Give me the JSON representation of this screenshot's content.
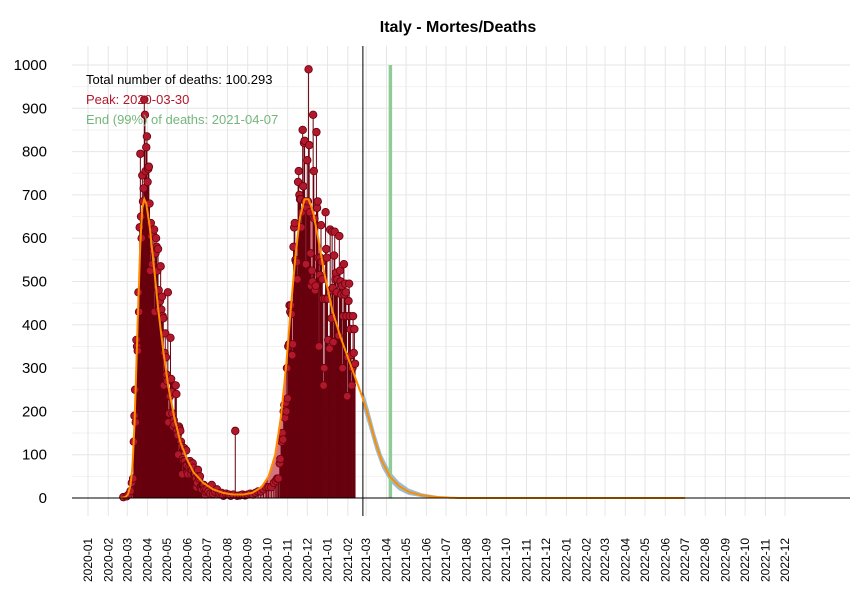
{
  "chart_data": {
    "type": "line",
    "title": "Italy - Mortes/Deaths",
    "xlabel": "",
    "ylabel": "",
    "ylim": [
      0,
      1000
    ],
    "xlim": [
      "2019-12-23",
      "2023-01-10"
    ],
    "yticks": [
      0,
      100,
      200,
      300,
      400,
      500,
      600,
      700,
      800,
      900,
      1000
    ],
    "xticks": [
      "2020-01",
      "2020-02",
      "2020-03",
      "2020-04",
      "2020-05",
      "2020-06",
      "2020-07",
      "2020-08",
      "2020-09",
      "2020-10",
      "2020-11",
      "2020-12",
      "2021-01",
      "2021-02",
      "2021-03",
      "2021-04",
      "2021-05",
      "2021-06",
      "2021-07",
      "2021-08",
      "2021-09",
      "2021-10",
      "2021-11",
      "2021-12",
      "2022-01",
      "2022-02",
      "2022-03",
      "2022-04",
      "2022-05",
      "2022-06",
      "2022-07",
      "2022-08",
      "2022-09",
      "2022-10",
      "2022-11",
      "2022-12"
    ],
    "grid": true,
    "annotations": {
      "total": "Total number of deaths: 100.293",
      "peak": "Peak: 2020-03-30",
      "end": "End (99%) of deaths: 2021-04-07"
    },
    "today_line": "2021-02-24",
    "end_line": "2021-04-07",
    "shaded_waves": [
      {
        "start": "2020-03-23",
        "end": "2020-09-30"
      },
      {
        "start": "2020-10-01",
        "end": "2020-12-20"
      }
    ],
    "daily_deaths": [
      [
        "2020-02-24",
        2
      ],
      [
        "2020-02-29",
        4
      ],
      [
        "2020-03-03",
        8
      ],
      [
        "2020-03-06",
        16
      ],
      [
        "2020-03-08",
        35
      ],
      [
        "2020-03-10",
        45
      ],
      [
        "2020-03-11",
        130
      ],
      [
        "2020-03-12",
        190
      ],
      [
        "2020-03-13",
        250
      ],
      [
        "2020-03-14",
        175
      ],
      [
        "2020-03-15",
        365
      ],
      [
        "2020-03-16",
        350
      ],
      [
        "2020-03-17",
        340
      ],
      [
        "2020-03-18",
        475
      ],
      [
        "2020-03-19",
        430
      ],
      [
        "2020-03-20",
        625
      ],
      [
        "2020-03-21",
        795
      ],
      [
        "2020-03-22",
        650
      ],
      [
        "2020-03-23",
        600
      ],
      [
        "2020-03-24",
        745
      ],
      [
        "2020-03-25",
        685
      ],
      [
        "2020-03-26",
        715
      ],
      [
        "2020-03-27",
        920
      ],
      [
        "2020-03-28",
        885
      ],
      [
        "2020-03-29",
        755
      ],
      [
        "2020-03-30",
        810
      ],
      [
        "2020-03-31",
        835
      ],
      [
        "2020-04-01",
        730
      ],
      [
        "2020-04-02",
        760
      ],
      [
        "2020-04-03",
        765
      ],
      [
        "2020-04-04",
        680
      ],
      [
        "2020-04-05",
        525
      ],
      [
        "2020-04-06",
        635
      ],
      [
        "2020-04-07",
        605
      ],
      [
        "2020-04-08",
        540
      ],
      [
        "2020-04-09",
        610
      ],
      [
        "2020-04-10",
        570
      ],
      [
        "2020-04-11",
        620
      ],
      [
        "2020-04-12",
        430
      ],
      [
        "2020-04-13",
        565
      ],
      [
        "2020-04-14",
        600
      ],
      [
        "2020-04-15",
        580
      ],
      [
        "2020-04-16",
        525
      ],
      [
        "2020-04-17",
        575
      ],
      [
        "2020-04-18",
        480
      ],
      [
        "2020-04-19",
        435
      ],
      [
        "2020-04-20",
        455
      ],
      [
        "2020-04-21",
        535
      ],
      [
        "2020-04-22",
        435
      ],
      [
        "2020-04-23",
        465
      ],
      [
        "2020-04-24",
        420
      ],
      [
        "2020-04-25",
        415
      ],
      [
        "2020-04-26",
        260
      ],
      [
        "2020-04-27",
        335
      ],
      [
        "2020-04-28",
        380
      ],
      [
        "2020-04-29",
        325
      ],
      [
        "2020-04-30",
        285
      ],
      [
        "2020-05-01",
        270
      ],
      [
        "2020-05-02",
        475
      ],
      [
        "2020-05-03",
        175
      ],
      [
        "2020-05-04",
        195
      ],
      [
        "2020-05-05",
        235
      ],
      [
        "2020-05-06",
        370
      ],
      [
        "2020-05-07",
        275
      ],
      [
        "2020-05-08",
        245
      ],
      [
        "2020-05-09",
        195
      ],
      [
        "2020-05-10",
        165
      ],
      [
        "2020-05-11",
        180
      ],
      [
        "2020-05-12",
        170
      ],
      [
        "2020-05-13",
        260
      ],
      [
        "2020-05-14",
        260
      ],
      [
        "2020-05-15",
        240
      ],
      [
        "2020-05-16",
        155
      ],
      [
        "2020-05-17",
        145
      ],
      [
        "2020-05-18",
        100
      ],
      [
        "2020-05-19",
        165
      ],
      [
        "2020-05-20",
        160
      ],
      [
        "2020-05-21",
        155
      ],
      [
        "2020-05-22",
        130
      ],
      [
        "2020-05-23",
        120
      ],
      [
        "2020-05-24",
        55
      ],
      [
        "2020-05-25",
        90
      ],
      [
        "2020-05-26",
        85
      ],
      [
        "2020-05-27",
        115
      ],
      [
        "2020-05-28",
        85
      ],
      [
        "2020-05-29",
        75
      ],
      [
        "2020-05-30",
        110
      ],
      [
        "2020-05-31",
        75
      ],
      [
        "2020-06-01",
        60
      ],
      [
        "2020-06-02",
        55
      ],
      [
        "2020-06-03",
        70
      ],
      [
        "2020-06-04",
        85
      ],
      [
        "2020-06-05",
        85
      ],
      [
        "2020-06-06",
        70
      ],
      [
        "2020-06-07",
        55
      ],
      [
        "2020-06-08",
        65
      ],
      [
        "2020-06-09",
        80
      ],
      [
        "2020-06-10",
        70
      ],
      [
        "2020-06-11",
        55
      ],
      [
        "2020-06-12",
        55
      ],
      [
        "2020-06-13",
        55
      ],
      [
        "2020-06-14",
        45
      ],
      [
        "2020-06-15",
        25
      ],
      [
        "2020-06-16",
        35
      ],
      [
        "2020-06-17",
        65
      ],
      [
        "2020-06-18",
        50
      ],
      [
        "2020-06-19",
        45
      ],
      [
        "2020-06-20",
        50
      ],
      [
        "2020-06-21",
        25
      ],
      [
        "2020-06-22",
        25
      ],
      [
        "2020-06-23",
        20
      ],
      [
        "2020-06-24",
        30
      ],
      [
        "2020-06-25",
        30
      ],
      [
        "2020-06-26",
        30
      ],
      [
        "2020-06-27",
        20
      ],
      [
        "2020-06-28",
        8
      ],
      [
        "2020-06-29",
        15
      ],
      [
        "2020-06-30",
        20
      ],
      [
        "2020-07-03",
        15
      ],
      [
        "2020-07-06",
        10
      ],
      [
        "2020-07-08",
        30
      ],
      [
        "2020-07-10",
        10
      ],
      [
        "2020-07-13",
        15
      ],
      [
        "2020-07-16",
        20
      ],
      [
        "2020-07-20",
        10
      ],
      [
        "2020-07-23",
        12
      ],
      [
        "2020-07-26",
        5
      ],
      [
        "2020-07-30",
        10
      ],
      [
        "2020-08-03",
        8
      ],
      [
        "2020-08-06",
        5
      ],
      [
        "2020-08-10",
        8
      ],
      [
        "2020-08-13",
        155
      ],
      [
        "2020-08-16",
        5
      ],
      [
        "2020-08-20",
        6
      ],
      [
        "2020-08-24",
        8
      ],
      [
        "2020-08-28",
        6
      ],
      [
        "2020-09-01",
        8
      ],
      [
        "2020-09-05",
        10
      ],
      [
        "2020-09-09",
        8
      ],
      [
        "2020-09-13",
        12
      ],
      [
        "2020-09-17",
        15
      ],
      [
        "2020-09-21",
        15
      ],
      [
        "2020-09-25",
        20
      ],
      [
        "2020-09-29",
        25
      ],
      [
        "2020-10-03",
        25
      ],
      [
        "2020-10-07",
        25
      ],
      [
        "2020-10-11",
        35
      ],
      [
        "2020-10-14",
        40
      ],
      [
        "2020-10-16",
        45
      ],
      [
        "2020-10-18",
        45
      ],
      [
        "2020-10-20",
        80
      ],
      [
        "2020-10-21",
        90
      ],
      [
        "2020-10-22",
        135
      ],
      [
        "2020-10-23",
        130
      ],
      [
        "2020-10-24",
        150
      ],
      [
        "2020-10-25",
        135
      ],
      [
        "2020-10-26",
        200
      ],
      [
        "2020-10-27",
        215
      ],
      [
        "2020-10-28",
        185
      ],
      [
        "2020-10-29",
        220
      ],
      [
        "2020-10-30",
        200
      ],
      [
        "2020-10-31",
        300
      ],
      [
        "2020-11-01",
        230
      ],
      [
        "2020-11-02",
        350
      ],
      [
        "2020-11-03",
        355
      ],
      [
        "2020-11-04",
        445
      ],
      [
        "2020-11-05",
        430
      ],
      [
        "2020-11-06",
        445
      ],
      [
        "2020-11-07",
        425
      ],
      [
        "2020-11-08",
        330
      ],
      [
        "2020-11-09",
        355
      ],
      [
        "2020-11-10",
        580
      ],
      [
        "2020-11-11",
        625
      ],
      [
        "2020-11-12",
        635
      ],
      [
        "2020-11-13",
        550
      ],
      [
        "2020-11-14",
        545
      ],
      [
        "2020-11-15",
        545
      ],
      [
        "2020-11-16",
        505
      ],
      [
        "2020-11-17",
        730
      ],
      [
        "2020-11-18",
        755
      ],
      [
        "2020-11-19",
        700
      ],
      [
        "2020-11-20",
        690
      ],
      [
        "2020-11-21",
        690
      ],
      [
        "2020-11-22",
        625
      ],
      [
        "2020-11-23",
        660
      ],
      [
        "2020-11-24",
        850
      ],
      [
        "2020-11-25",
        720
      ],
      [
        "2020-11-26",
        820
      ],
      [
        "2020-11-27",
        825
      ],
      [
        "2020-11-28",
        685
      ],
      [
        "2020-11-29",
        540
      ],
      [
        "2020-11-30",
        670
      ],
      [
        "2020-12-01",
        780
      ],
      [
        "2020-12-02",
        685
      ],
      [
        "2020-12-03",
        990
      ],
      [
        "2020-12-04",
        815
      ],
      [
        "2020-12-05",
        660
      ],
      [
        "2020-12-06",
        565
      ],
      [
        "2020-12-07",
        490
      ],
      [
        "2020-12-08",
        525
      ],
      [
        "2020-12-09",
        500
      ],
      [
        "2020-12-10",
        885
      ],
      [
        "2020-12-11",
        755
      ],
      [
        "2020-12-12",
        645
      ],
      [
        "2020-12-13",
        480
      ],
      [
        "2020-12-14",
        490
      ],
      [
        "2020-12-15",
        845
      ],
      [
        "2020-12-16",
        670
      ],
      [
        "2020-12-17",
        685
      ],
      [
        "2020-12-18",
        555
      ],
      [
        "2020-12-19",
        350
      ],
      [
        "2020-12-20",
        515
      ],
      [
        "2020-12-21",
        555
      ],
      [
        "2020-12-22",
        630
      ],
      [
        "2020-12-23",
        545
      ],
      [
        "2020-12-24",
        505
      ],
      [
        "2020-12-25",
        460
      ],
      [
        "2020-12-26",
        260
      ],
      [
        "2020-12-27",
        300
      ],
      [
        "2020-12-28",
        460
      ],
      [
        "2020-12-29",
        660
      ],
      [
        "2020-12-30",
        575
      ],
      [
        "2020-12-31",
        555
      ],
      [
        "2021-01-01",
        460
      ],
      [
        "2021-01-02",
        365
      ],
      [
        "2021-01-03",
        345
      ],
      [
        "2021-01-04",
        345
      ],
      [
        "2021-01-05",
        620
      ],
      [
        "2021-01-06",
        480
      ],
      [
        "2021-01-07",
        415
      ],
      [
        "2021-01-08",
        615
      ],
      [
        "2021-01-09",
        485
      ],
      [
        "2021-01-10",
        360
      ],
      [
        "2021-01-11",
        560
      ],
      [
        "2021-01-12",
        615
      ],
      [
        "2021-01-13",
        505
      ],
      [
        "2021-01-14",
        520
      ],
      [
        "2021-01-15",
        475
      ],
      [
        "2021-01-16",
        505
      ],
      [
        "2021-01-17",
        375
      ],
      [
        "2021-01-18",
        375
      ],
      [
        "2021-01-19",
        605
      ],
      [
        "2021-01-20",
        525
      ],
      [
        "2021-01-21",
        500
      ],
      [
        "2021-01-22",
        470
      ],
      [
        "2021-01-23",
        490
      ],
      [
        "2021-01-24",
        300
      ],
      [
        "2021-01-25",
        420
      ],
      [
        "2021-01-26",
        540
      ],
      [
        "2021-01-27",
        470
      ],
      [
        "2021-01-28",
        495
      ],
      [
        "2021-01-29",
        475
      ],
      [
        "2021-01-30",
        420
      ],
      [
        "2021-01-31",
        235
      ],
      [
        "2021-02-01",
        325
      ],
      [
        "2021-02-02",
        455
      ],
      [
        "2021-02-03",
        495
      ],
      [
        "2021-02-04",
        420
      ],
      [
        "2021-02-05",
        390
      ],
      [
        "2021-02-06",
        330
      ],
      [
        "2021-02-07",
        260
      ],
      [
        "2021-02-08",
        300
      ],
      [
        "2021-02-09",
        420
      ],
      [
        "2021-02-10",
        335
      ],
      [
        "2021-02-11",
        390
      ],
      [
        "2021-02-12",
        310
      ]
    ],
    "fitted_curve": [
      [
        "2020-02-20",
        0
      ],
      [
        "2020-02-27",
        2
      ],
      [
        "2020-03-02",
        8
      ],
      [
        "2020-03-06",
        30
      ],
      [
        "2020-03-09",
        75
      ],
      [
        "2020-03-12",
        170
      ],
      [
        "2020-03-15",
        310
      ],
      [
        "2020-03-18",
        460
      ],
      [
        "2020-03-21",
        590
      ],
      [
        "2020-03-24",
        670
      ],
      [
        "2020-03-27",
        690
      ],
      [
        "2020-03-30",
        680
      ],
      [
        "2020-04-04",
        630
      ],
      [
        "2020-04-10",
        545
      ],
      [
        "2020-04-17",
        440
      ],
      [
        "2020-04-25",
        340
      ],
      [
        "2020-05-03",
        255
      ],
      [
        "2020-05-12",
        185
      ],
      [
        "2020-05-21",
        130
      ],
      [
        "2020-05-31",
        90
      ],
      [
        "2020-06-10",
        60
      ],
      [
        "2020-06-25",
        35
      ],
      [
        "2020-07-10",
        20
      ],
      [
        "2020-07-25",
        12
      ],
      [
        "2020-08-10",
        8
      ],
      [
        "2020-08-25",
        8
      ],
      [
        "2020-09-08",
        12
      ],
      [
        "2020-09-22",
        25
      ],
      [
        "2020-10-03",
        50
      ],
      [
        "2020-10-13",
        100
      ],
      [
        "2020-10-22",
        190
      ],
      [
        "2020-10-30",
        310
      ],
      [
        "2020-11-06",
        440
      ],
      [
        "2020-11-13",
        560
      ],
      [
        "2020-11-20",
        650
      ],
      [
        "2020-11-27",
        690
      ],
      [
        "2020-12-03",
        690
      ],
      [
        "2020-12-10",
        660
      ],
      [
        "2020-12-17",
        605
      ],
      [
        "2020-12-27",
        520
      ],
      [
        "2021-01-08",
        435
      ],
      [
        "2021-01-20",
        375
      ],
      [
        "2021-02-01",
        325
      ],
      [
        "2021-02-13",
        275
      ],
      [
        "2021-02-24",
        230
      ],
      [
        "2021-03-05",
        185
      ],
      [
        "2021-03-15",
        130
      ],
      [
        "2021-03-25",
        85
      ],
      [
        "2021-04-07",
        48
      ],
      [
        "2021-04-20",
        28
      ],
      [
        "2021-05-05",
        14
      ],
      [
        "2021-05-25",
        6
      ],
      [
        "2021-06-20",
        2
      ],
      [
        "2021-07-20",
        0
      ],
      [
        "2022-07-01",
        0
      ]
    ],
    "confidence_band": [
      [
        "2021-02-24",
        210,
        250
      ],
      [
        "2021-03-05",
        165,
        205
      ],
      [
        "2021-03-15",
        112,
        148
      ],
      [
        "2021-03-25",
        70,
        100
      ],
      [
        "2021-04-07",
        36,
        60
      ],
      [
        "2021-04-20",
        18,
        38
      ],
      [
        "2021-05-05",
        7,
        22
      ],
      [
        "2021-05-25",
        2,
        11
      ],
      [
        "2021-06-20",
        0,
        4
      ],
      [
        "2021-07-20",
        0,
        1
      ]
    ],
    "colors": {
      "points": "#b2182b",
      "points_edge": "#67000d",
      "stem": "#67000d",
      "fill": "#d6737e",
      "fill_edge": "#b22234",
      "curve": "#ff8c00",
      "band": "#7aa6c2",
      "end_line": "#8fcb97",
      "peak_text": "#b2182b",
      "end_text": "#74b77c",
      "grid": "#e6e6e6"
    }
  }
}
